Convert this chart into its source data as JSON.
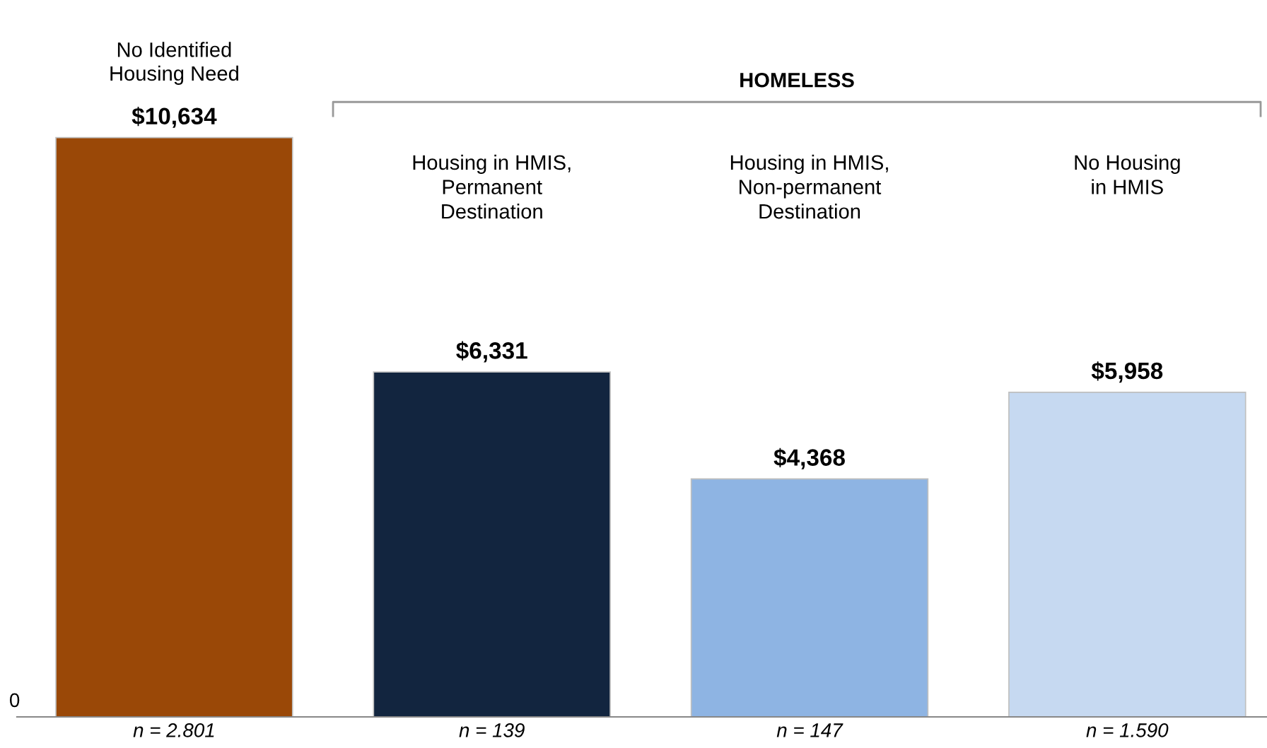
{
  "chart_data": {
    "type": "bar",
    "categories": [
      "n = 2.801",
      "n = 139",
      "n = 147",
      "n = 1.590"
    ],
    "values": [
      10634,
      6331,
      4368,
      5958
    ],
    "colors": [
      "#9a4807",
      "#12253f",
      "#8eb4e3",
      "#c6d9f1"
    ],
    "value_labels": [
      "$10,634",
      "$6,331",
      "$4,368",
      "$5,958"
    ],
    "grid": false,
    "legend": false,
    "annotations": [
      "HOMELESS",
      "0",
      "No Identified\nHousing Need",
      "Housing in HMIS,\nPermanent\nDestination",
      "Housing in HMIS,\nNon-permanent\nDestination",
      "No Housing\nin HMIS"
    ]
  }
}
